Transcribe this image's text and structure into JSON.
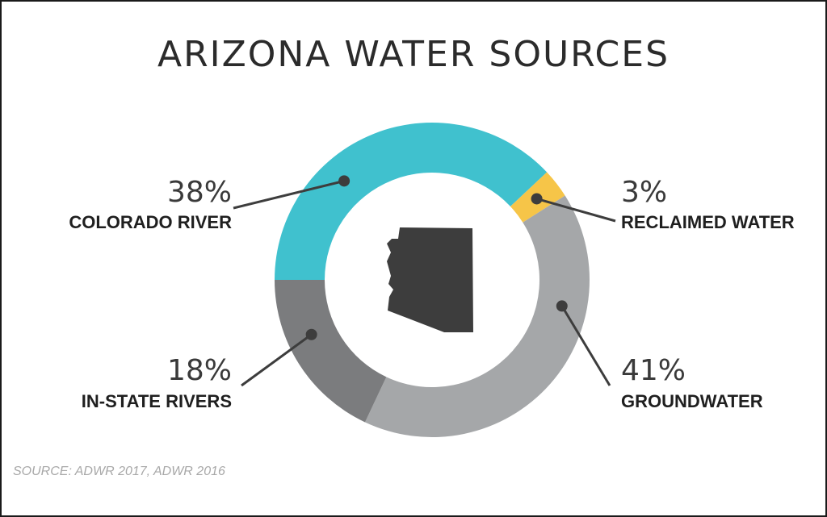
{
  "chart_data": {
    "type": "pie",
    "title": "ARIZONA WATER SOURCES",
    "donut": true,
    "unit": "%",
    "slices": [
      {
        "label": "COLORADO RIVER",
        "value": 38,
        "display": "38%",
        "color": "#40c1ce"
      },
      {
        "label": "RECLAIMED WATER",
        "value": 3,
        "display": "3%",
        "color": "#f6c548"
      },
      {
        "label": "GROUNDWATER",
        "value": 41,
        "display": "41%",
        "color": "#a5a7a9"
      },
      {
        "label": "IN-STATE RIVERS",
        "value": 18,
        "display": "18%",
        "color": "#7b7c7e"
      }
    ],
    "center_icon": "arizona-state-silhouette-icon",
    "source": "SOURCE: ADWR 2017, ADWR 2016"
  }
}
